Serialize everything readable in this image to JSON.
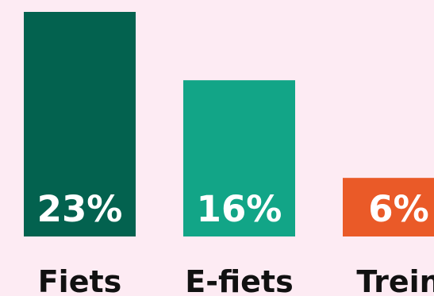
{
  "chart_data": {
    "type": "bar",
    "categories": [
      "Fiets",
      "E-fiets",
      "Trein"
    ],
    "values": [
      23,
      16,
      6
    ],
    "value_labels": [
      "23%",
      "16%",
      "6%"
    ],
    "colors": [
      "#03624f",
      "#12a587",
      "#ea5a28"
    ],
    "ylim": [
      0,
      23
    ],
    "grid": false,
    "title": "",
    "xlabel": "",
    "ylabel": ""
  }
}
